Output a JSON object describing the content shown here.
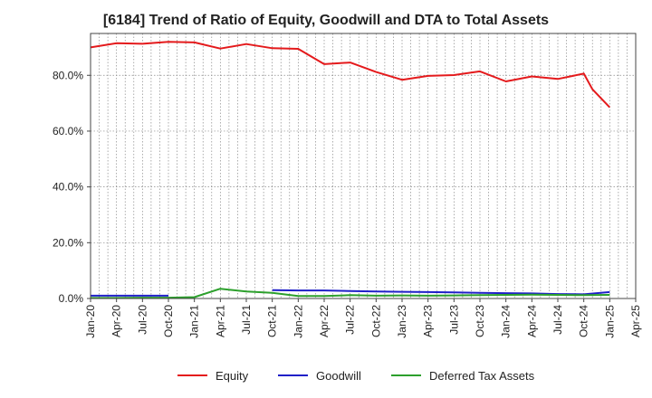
{
  "chart_data": {
    "type": "line",
    "title": "[6184]  Trend of Ratio of Equity, Goodwill and DTA to Total Assets",
    "xlabel": "",
    "ylabel": "",
    "ylim": [
      0,
      95
    ],
    "yticks": [
      0,
      20,
      40,
      60,
      80
    ],
    "ytick_labels": [
      "0.0%",
      "20.0%",
      "40.0%",
      "60.0%",
      "80.0%"
    ],
    "xlim": [
      0,
      63
    ],
    "xticks": [
      0,
      3,
      6,
      9,
      12,
      15,
      18,
      21,
      24,
      27,
      30,
      33,
      36,
      39,
      42,
      45,
      48,
      51,
      54,
      57,
      60,
      63
    ],
    "xtick_labels": [
      "Jan-20",
      "Apr-20",
      "Jul-20",
      "Oct-20",
      "Jan-21",
      "Apr-21",
      "Jul-21",
      "Oct-21",
      "Jan-22",
      "Apr-22",
      "Jul-22",
      "Oct-22",
      "Jan-23",
      "Apr-23",
      "Jul-23",
      "Oct-23",
      "Jan-24",
      "Apr-24",
      "Jul-24",
      "Oct-24",
      "Jan-25",
      "Apr-25"
    ],
    "grid": true,
    "legend_position": "bottom",
    "series": [
      {
        "name": "Equity",
        "color": "#e41a1c",
        "points": [
          [
            0,
            90.0
          ],
          [
            3,
            91.5
          ],
          [
            6,
            91.3
          ],
          [
            9,
            92.0
          ],
          [
            12,
            91.8
          ],
          [
            15,
            89.6
          ],
          [
            18,
            91.2
          ],
          [
            21,
            89.7
          ],
          [
            24,
            89.5
          ],
          [
            27,
            84.0
          ],
          [
            30,
            84.6
          ],
          [
            33,
            81.2
          ],
          [
            36,
            78.4
          ],
          [
            39,
            79.8
          ],
          [
            42,
            80.1
          ],
          [
            45,
            81.4
          ],
          [
            48,
            77.8
          ],
          [
            51,
            79.6
          ],
          [
            54,
            78.7
          ],
          [
            57,
            80.6
          ],
          [
            58,
            75.0
          ],
          [
            60,
            68.5
          ]
        ]
      },
      {
        "name": "Goodwill",
        "color": "#1f1fc8",
        "points": [
          [
            0,
            1.0
          ],
          [
            3,
            1.0
          ],
          [
            6,
            1.0
          ],
          [
            9,
            1.0
          ],
          null,
          [
            21,
            3.0
          ],
          [
            24,
            2.9
          ],
          [
            27,
            2.9
          ],
          [
            30,
            2.7
          ],
          [
            33,
            2.5
          ],
          [
            36,
            2.4
          ],
          [
            39,
            2.3
          ],
          [
            42,
            2.2
          ],
          [
            45,
            2.0
          ],
          [
            48,
            1.9
          ],
          [
            51,
            1.8
          ],
          [
            54,
            1.6
          ],
          [
            57,
            1.5
          ],
          [
            60,
            2.3
          ]
        ]
      },
      {
        "name": "Deferred Tax Assets",
        "color": "#2ca02c",
        "points": [
          [
            0,
            0.2
          ],
          [
            3,
            0.2
          ],
          [
            6,
            0.3
          ],
          [
            9,
            0.3
          ],
          [
            12,
            0.5
          ],
          [
            15,
            3.5
          ],
          [
            18,
            2.5
          ],
          [
            21,
            2.0
          ],
          [
            24,
            0.9
          ],
          [
            27,
            0.9
          ],
          [
            30,
            1.2
          ],
          [
            33,
            1.0
          ],
          [
            36,
            1.1
          ],
          [
            39,
            1.0
          ],
          [
            42,
            1.1
          ],
          [
            45,
            1.2
          ],
          [
            48,
            1.3
          ],
          [
            51,
            1.4
          ],
          [
            54,
            1.3
          ],
          [
            57,
            1.2
          ],
          [
            60,
            1.3
          ]
        ]
      }
    ]
  }
}
